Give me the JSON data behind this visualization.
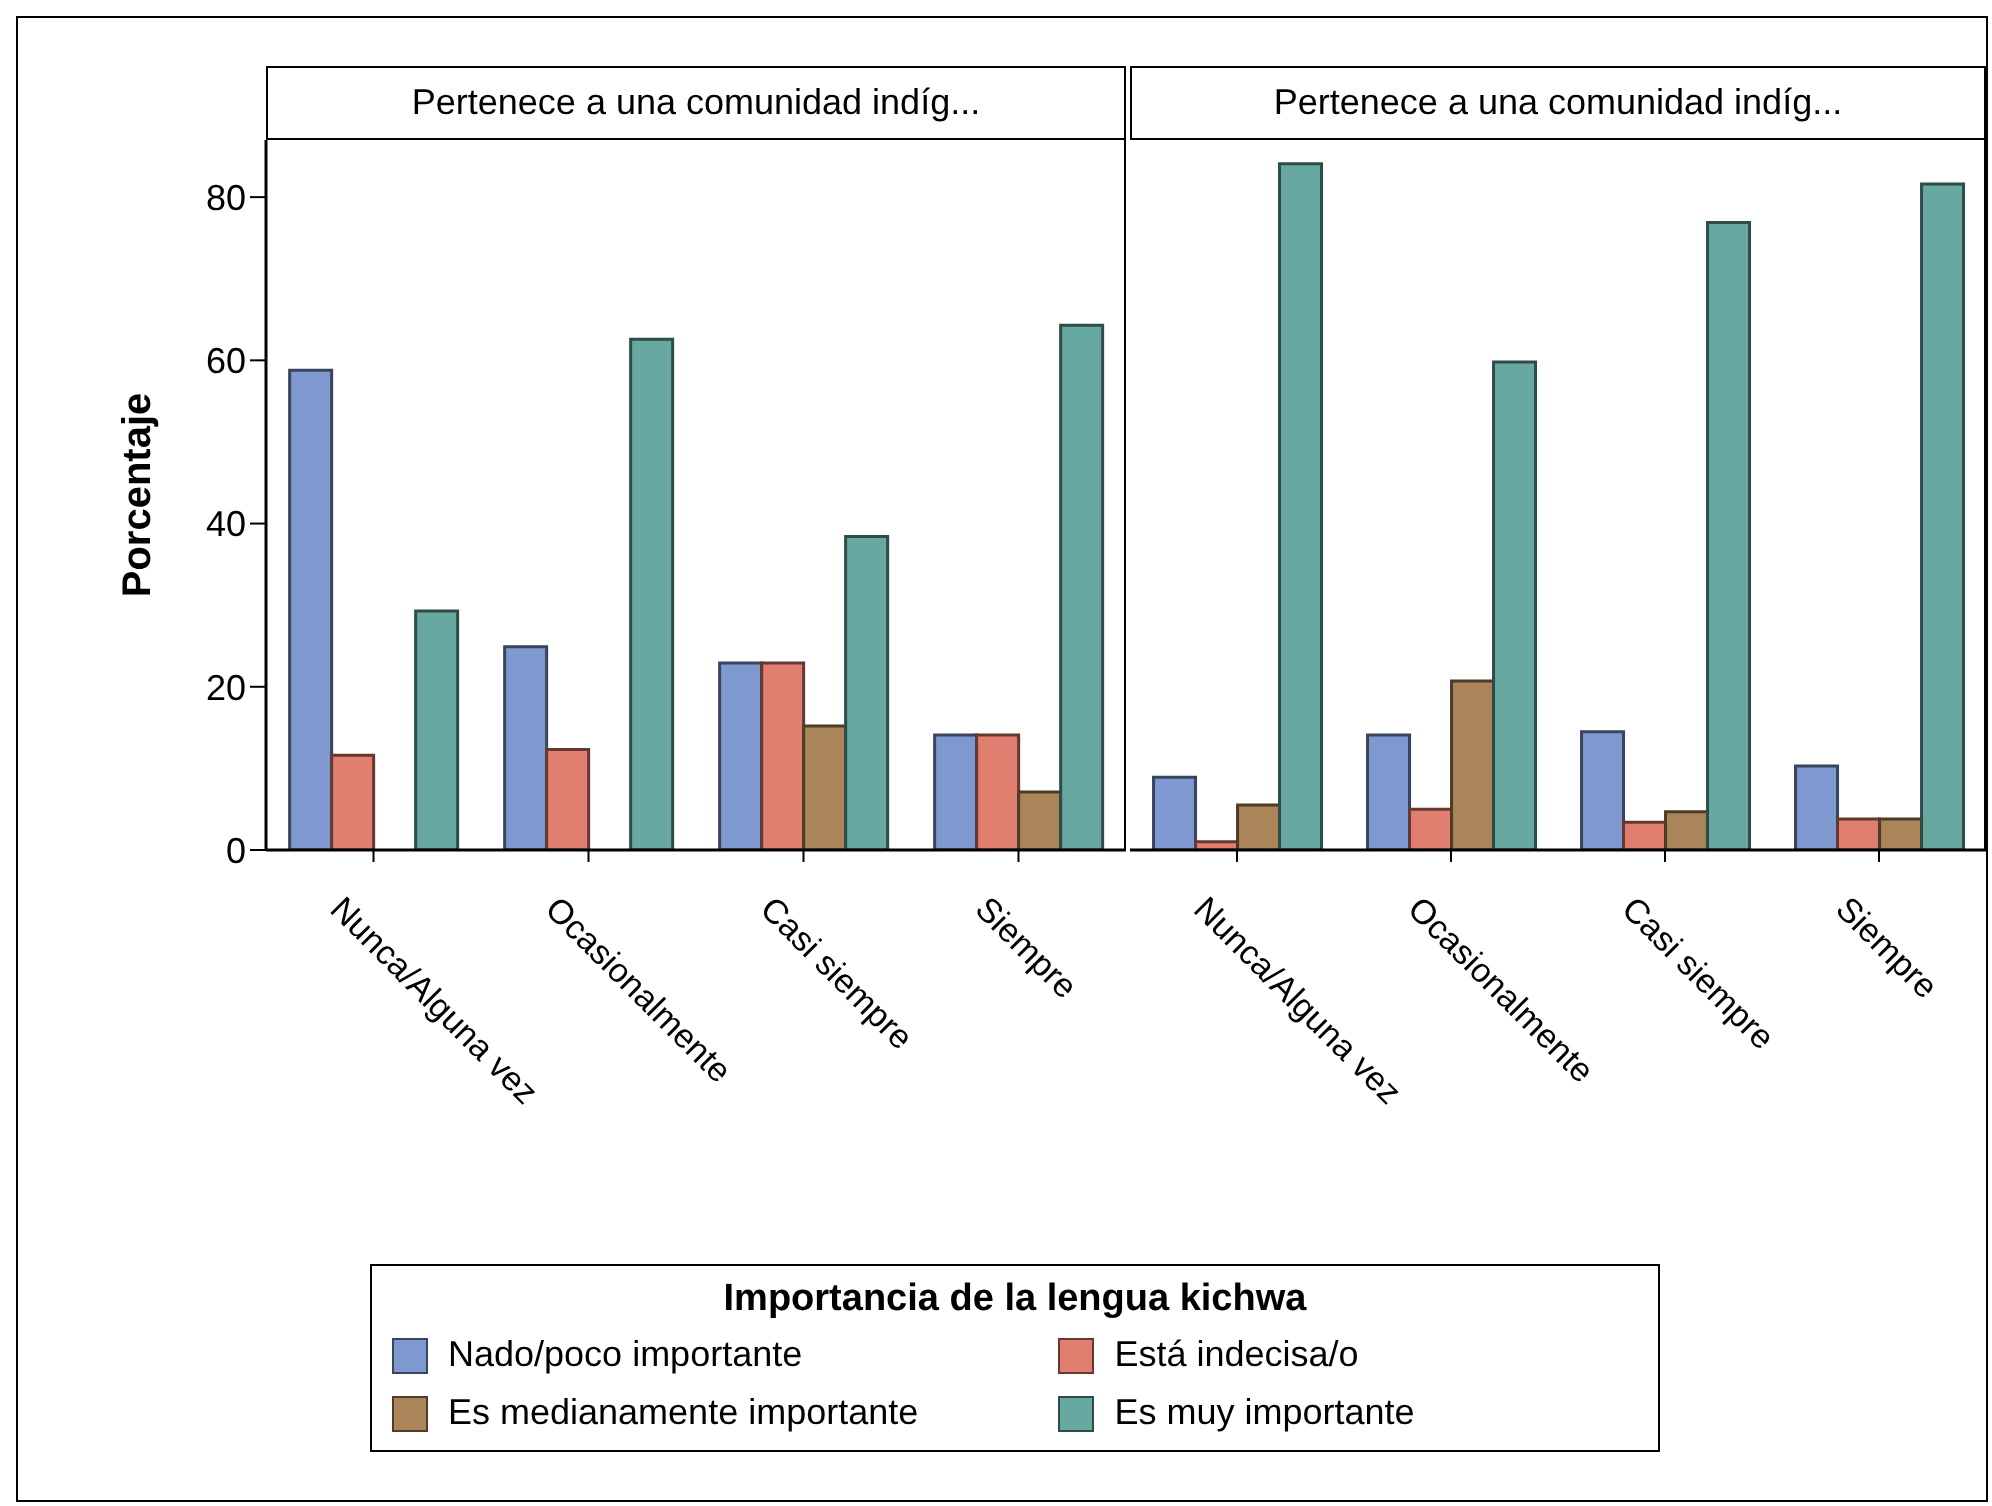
{
  "chart_data": [
    {
      "type": "bar",
      "title": "Pertenece a una comunidad indíg...",
      "ylabel": "Porcentaje",
      "legend_title": "Importancia de la lengua kichwa",
      "legend": "bottom",
      "categories": [
        "Nunca/Alguna vez",
        "Ocasionalmente",
        "Casi siempre",
        "Siempre"
      ],
      "series": [
        {
          "name": "Nado/poco importante",
          "color": "#7f98cf",
          "values": [
            58.8,
            24.9,
            22.9,
            14.1
          ]
        },
        {
          "name": "Está indecisa/o",
          "color": "#e07f70",
          "values": [
            11.6,
            12.3,
            22.9,
            14.1
          ]
        },
        {
          "name": "Es medianamente importante",
          "color": "#a98559",
          "values": [
            null,
            null,
            15.2,
            7.1
          ]
        },
        {
          "name": "Es muy importante",
          "color": "#67a8a0",
          "values": [
            29.3,
            62.6,
            38.4,
            64.3
          ]
        }
      ],
      "ylim": [
        0,
        87
      ],
      "yticks": [
        0,
        20,
        40,
        60,
        80
      ],
      "grid": false
    },
    {
      "type": "bar",
      "title": "Pertenece a una comunidad indíg...",
      "tick_labels": "x",
      "categories": [
        "Nunca/Alguna vez",
        "Ocasionalmente",
        "Casi siempre",
        "Siempre"
      ],
      "series": [
        {
          "color": "#7f98cf",
          "values": [
            8.9,
            14.1,
            14.5,
            10.3
          ]
        },
        {
          "color": "#e07f70",
          "values": [
            1.0,
            5.0,
            3.4,
            3.8
          ]
        },
        {
          "color": "#a98559",
          "values": [
            5.5,
            20.7,
            4.7,
            3.8
          ]
        },
        {
          "color": "#67a8a0",
          "values": [
            84.1,
            59.8,
            76.9,
            81.6
          ]
        }
      ],
      "ylim": [
        0,
        87
      ],
      "yticks": [
        0,
        20,
        40,
        60,
        80
      ],
      "grid": false
    }
  ]
}
